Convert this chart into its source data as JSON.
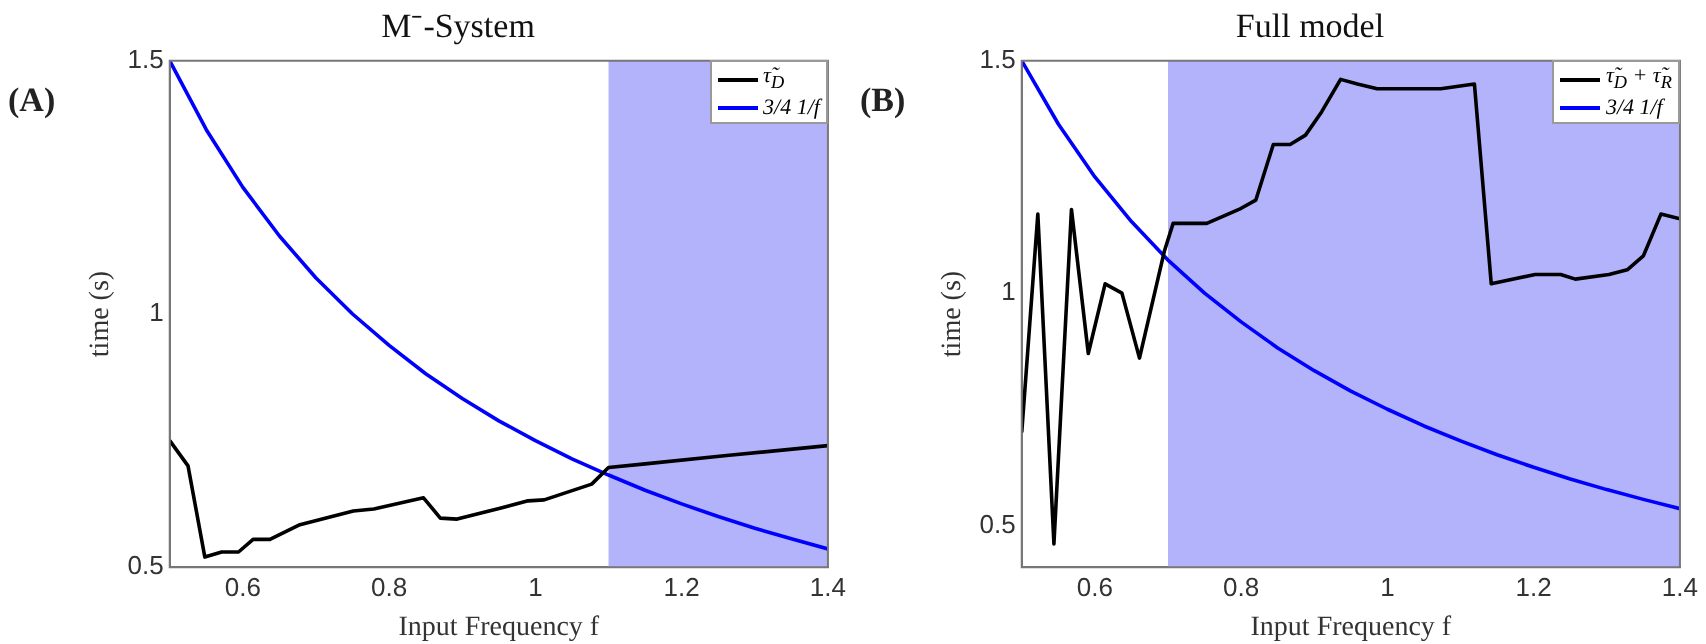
{
  "chart_data": [
    {
      "type": "line",
      "title": "M⁻-System",
      "xlabel": "Input Frequency f",
      "ylabel": "time (s)",
      "annotations": [
        "(A)"
      ],
      "xlim": [
        0.5,
        1.4
      ],
      "ylim": [
        0.5,
        1.5
      ],
      "xticks": [
        0.6,
        0.8,
        1,
        1.2,
        1.4
      ],
      "yticks": [
        0.5,
        1,
        1.5
      ],
      "grid": false,
      "legend": "top right",
      "marker": "none",
      "line_style": "solid",
      "bands": [
        {
          "axis": "x",
          "from": 1.1,
          "to": 1.4,
          "color": "#b3b3fb"
        }
      ],
      "series": [
        {
          "name": "τ̃$_{D}$",
          "color": "#000000",
          "x": [
            0.5,
            0.525,
            0.548,
            0.571,
            0.594,
            0.614,
            0.637,
            0.678,
            0.751,
            0.779,
            0.847,
            0.87,
            0.893,
            0.953,
            0.99,
            1.012,
            1.077,
            1.1,
            1.15,
            1.265,
            1.4
          ],
          "values": [
            0.75,
            0.7,
            0.52,
            0.53,
            0.53,
            0.555,
            0.555,
            0.584,
            0.611,
            0.615,
            0.637,
            0.597,
            0.595,
            0.617,
            0.631,
            0.633,
            0.664,
            0.697,
            0.704,
            0.721,
            0.74
          ]
        },
        {
          "name": "3/4 1/f",
          "color": "#0000ff",
          "x": [
            0.5,
            0.55,
            0.6,
            0.65,
            0.7,
            0.75,
            0.8,
            0.85,
            0.9,
            0.95,
            1,
            1.05,
            1.1,
            1.15,
            1.2,
            1.25,
            1.3,
            1.35,
            1.4
          ],
          "values": [
            1.5,
            1.364,
            1.25,
            1.154,
            1.071,
            1,
            0.938,
            0.882,
            0.833,
            0.789,
            0.75,
            0.714,
            0.682,
            0.652,
            0.625,
            0.6,
            0.577,
            0.556,
            0.536
          ]
        }
      ]
    },
    {
      "type": "line",
      "title": "Full model",
      "xlabel": "Input Frequency f",
      "ylabel": "time (s)",
      "annotations": [
        "(B)"
      ],
      "xlim": [
        0.5,
        1.4
      ],
      "ylim": [
        0.41,
        1.5
      ],
      "xticks": [
        0.6,
        0.8,
        1,
        1.2,
        1.4
      ],
      "yticks": [
        0.5,
        1,
        1.5
      ],
      "grid": false,
      "legend": "top right",
      "marker": "none",
      "line_style": "solid",
      "bands": [
        {
          "axis": "x",
          "from": 0.7,
          "to": 1.4,
          "color": "#b3b3fb"
        }
      ],
      "series": [
        {
          "name": "τ̃$_{D}$ + τ̃$_{R}$",
          "color": "#000000",
          "x": [
            0.5,
            0.522,
            0.544,
            0.568,
            0.591,
            0.614,
            0.637,
            0.661,
            0.695,
            0.707,
            0.753,
            0.797,
            0.82,
            0.844,
            0.867,
            0.888,
            0.91,
            0.936,
            0.959,
            0.986,
            1.032,
            1.073,
            1.119,
            1.142,
            1.202,
            1.237,
            1.257,
            1.303,
            1.328,
            1.35,
            1.374,
            1.4
          ],
          "values": [
            0.7,
            1.17,
            0.46,
            1.18,
            0.87,
            1.02,
            1,
            0.86,
            1.09,
            1.15,
            1.15,
            1.18,
            1.2,
            1.32,
            1.32,
            1.34,
            1.39,
            1.46,
            1.45,
            1.44,
            1.44,
            1.44,
            1.45,
            1.02,
            1.04,
            1.04,
            1.03,
            1.04,
            1.05,
            1.08,
            1.17,
            1.16
          ]
        },
        {
          "name": "3/4 1/f",
          "color": "#0000ff",
          "x": [
            0.5,
            0.55,
            0.6,
            0.65,
            0.7,
            0.75,
            0.8,
            0.85,
            0.9,
            0.95,
            1,
            1.05,
            1.1,
            1.15,
            1.2,
            1.25,
            1.3,
            1.35,
            1.4
          ],
          "values": [
            1.5,
            1.364,
            1.25,
            1.154,
            1.071,
            1,
            0.938,
            0.882,
            0.833,
            0.789,
            0.75,
            0.714,
            0.682,
            0.652,
            0.625,
            0.6,
            0.577,
            0.556,
            0.536
          ]
        }
      ]
    }
  ]
}
